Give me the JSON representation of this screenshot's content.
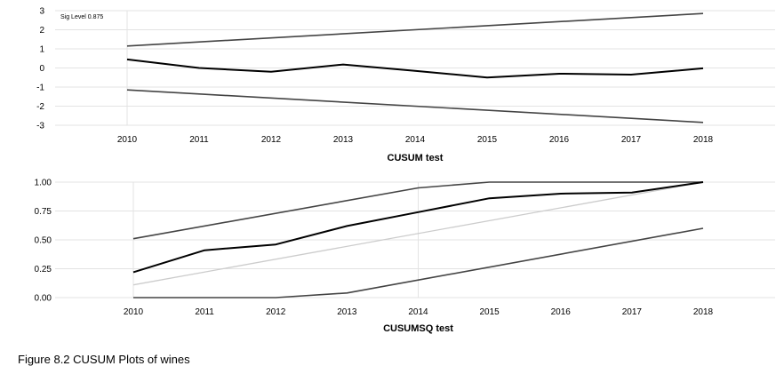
{
  "chart_data": [
    {
      "type": "line",
      "title": "CUSUM test",
      "annotation": "Sig Level 0.875",
      "x": [
        "2010",
        "2011",
        "2012",
        "2013",
        "2014",
        "2015",
        "2016",
        "2017",
        "2018"
      ],
      "ylim": [
        -3,
        3
      ],
      "yticks": [
        "3",
        "2",
        "1",
        "0",
        "-1",
        "-2",
        "-3"
      ],
      "grid": "light horizontal gridlines at each y tick, one vertical gridline at 2010",
      "series": [
        {
          "role": "statistic",
          "color": "#000000",
          "points": [
            [
              2010,
              0.45
            ],
            [
              2011,
              0.0
            ],
            [
              2012,
              -0.2
            ],
            [
              2013,
              0.18
            ],
            [
              2014,
              -0.15
            ],
            [
              2015,
              -0.5
            ],
            [
              2016,
              -0.3
            ],
            [
              2017,
              -0.35
            ],
            [
              2018,
              -0.02
            ]
          ]
        },
        {
          "role": "upper-bound",
          "color": "#444444",
          "points": [
            [
              2010,
              1.15
            ],
            [
              2018,
              2.85
            ]
          ]
        },
        {
          "role": "lower-bound",
          "color": "#444444",
          "points": [
            [
              2010,
              -1.15
            ],
            [
              2018,
              -2.85
            ]
          ]
        }
      ]
    },
    {
      "type": "line",
      "title": "CUSUMSQ test",
      "x": [
        "2010",
        "2011",
        "2012",
        "2013",
        "2014",
        "2015",
        "2016",
        "2017",
        "2018"
      ],
      "ylim": [
        0,
        1
      ],
      "yticks": [
        "1.00",
        "0.75",
        "0.50",
        "0.25",
        "0.00"
      ],
      "grid": "light horizontal gridlines at each y tick, vertical gridlines at 2010 and 2014",
      "series": [
        {
          "role": "statistic",
          "color": "#000000",
          "points": [
            [
              2010,
              0.22
            ],
            [
              2011,
              0.41
            ],
            [
              2012,
              0.46
            ],
            [
              2013,
              0.62
            ],
            [
              2014,
              0.74
            ],
            [
              2015,
              0.86
            ],
            [
              2016,
              0.9
            ],
            [
              2017,
              0.91
            ],
            [
              2018,
              1.0
            ]
          ]
        },
        {
          "role": "expected",
          "color": "#cccccc",
          "points": [
            [
              2010,
              0.11
            ],
            [
              2018,
              1.0
            ]
          ]
        },
        {
          "role": "upper-bound",
          "color": "#444444",
          "points": [
            [
              2010,
              0.51
            ],
            [
              2014,
              0.95
            ],
            [
              2015,
              1.0
            ],
            [
              2018,
              1.0
            ]
          ]
        },
        {
          "role": "lower-bound",
          "color": "#444444",
          "points": [
            [
              2010,
              0.0
            ],
            [
              2012,
              0.0
            ],
            [
              2013,
              0.04
            ],
            [
              2018,
              0.6
            ]
          ]
        }
      ]
    }
  ],
  "caption": "Figure 8.2 CUSUM Plots of wines"
}
